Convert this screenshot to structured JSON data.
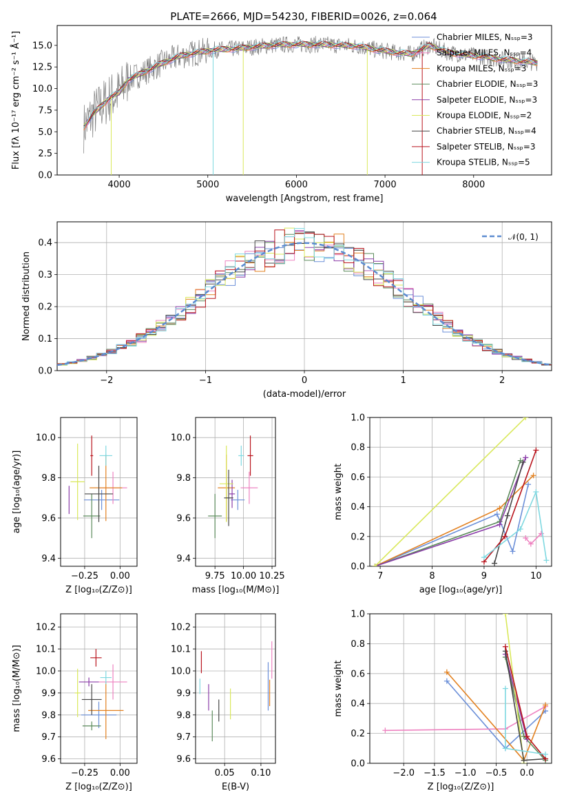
{
  "colors": [
    "#6b8fd8",
    "#ee82c0",
    "#e2801f",
    "#5a8a5a",
    "#8a3ba8",
    "#d9e85a",
    "#454545",
    "#b8121b",
    "#7ed8e0"
  ],
  "chart_data": [
    {
      "id": "spectrum",
      "type": "line",
      "title": "PLATE=2666, MJD=54230, FIBERID=0026, z=0.064",
      "xlabel": "wavelength [Angstrom, rest frame]",
      "ylabel": "Flux [fλ 10⁻¹⁷ erg cm⁻² s⁻¹ Å⁻¹]",
      "xlim": [
        3300,
        8880
      ],
      "ylim": [
        0,
        17.3
      ],
      "xticks": [
        4000,
        5000,
        6000,
        7000,
        8000
      ],
      "yticks": [
        0.0,
        2.5,
        5.0,
        7.5,
        10.0,
        12.5,
        15.0
      ],
      "legend_position": "right",
      "legend": [
        "Chabrier MILES, N_SSP=3",
        "Salpeter MILES, N_SSP=4",
        "Kroupa MILES, N_SSP=3",
        "Chabrier ELODIE, N_SSP=3",
        "Salpeter ELODIE, N_SSP=3",
        "Kroupa ELODIE, N_SSP=2",
        "Chabrier STELIB, N_SSP=4",
        "Salpeter STELIB, N_SSP=3",
        "Kroupa STELIB, N_SSP=5"
      ],
      "continuum": [
        [
          3600,
          5.5
        ],
        [
          3700,
          7.0
        ],
        [
          3800,
          8.0
        ],
        [
          3900,
          9.0
        ],
        [
          4000,
          9.5
        ],
        [
          4100,
          11.0
        ],
        [
          4300,
          12.0
        ],
        [
          4500,
          13.0
        ],
        [
          4700,
          13.8
        ],
        [
          4900,
          14.2
        ],
        [
          5100,
          14.5
        ],
        [
          5300,
          14.6
        ],
        [
          5500,
          14.8
        ],
        [
          5700,
          15.0
        ],
        [
          5900,
          15.1
        ],
        [
          6100,
          15.1
        ],
        [
          6300,
          15.1
        ],
        [
          6500,
          15.0
        ],
        [
          6700,
          14.9
        ],
        [
          6900,
          14.5
        ],
        [
          7100,
          14.2
        ],
        [
          7300,
          14.0
        ],
        [
          7500,
          15.0
        ],
        [
          7700,
          14.2
        ],
        [
          7900,
          13.9
        ],
        [
          8100,
          13.7
        ],
        [
          8300,
          13.4
        ],
        [
          8500,
          13.2
        ],
        [
          8700,
          13.0
        ]
      ]
    },
    {
      "id": "residuals",
      "type": "line",
      "xlabel": "(data-model)/error",
      "ylabel": "Normed distribution",
      "xlim": [
        -2.5,
        2.5
      ],
      "ylim": [
        0,
        0.465
      ],
      "xticks": [
        -2,
        -1,
        0,
        1,
        2
      ],
      "yticks": [
        0.0,
        0.1,
        0.2,
        0.3,
        0.4
      ],
      "legend": [
        "𝒩(0, 1)"
      ],
      "legend_position": "top-right"
    },
    {
      "id": "age-vs-Z",
      "type": "scatter",
      "xlabel": "Z [log₁₀(Z/Z⊙)]",
      "ylabel": "age  [log₁₀(age/yr)]",
      "xlim": [
        -0.42,
        0.12
      ],
      "ylim": [
        9.36,
        10.1
      ],
      "xticks": [
        -0.25,
        0.0
      ],
      "yticks": [
        9.4,
        9.6,
        9.8,
        10.0
      ],
      "points": [
        {
          "x": -0.13,
          "y": 9.69,
          "ex": 0.25,
          "ey": 0.1
        },
        {
          "x": -0.05,
          "y": 9.75,
          "ex": 0.2,
          "ey": 0.16
        },
        {
          "x": -0.1,
          "y": 9.75,
          "ex": 0.23,
          "ey": 0.33
        },
        {
          "x": -0.2,
          "y": 9.61,
          "ex": 0.12,
          "ey": 0.22
        },
        {
          "x": -0.36,
          "y": 9.69,
          "ex": 0.0,
          "ey": 0.14
        },
        {
          "x": -0.3,
          "y": 9.78,
          "ex": 0.1,
          "ey": 0.38
        },
        {
          "x": -0.15,
          "y": 9.72,
          "ex": 0.2,
          "ey": 0.28
        },
        {
          "x": -0.2,
          "y": 9.91,
          "ex": 0.02,
          "ey": 0.2
        },
        {
          "x": -0.1,
          "y": 9.91,
          "ex": 0.09,
          "ey": 0.1
        }
      ]
    },
    {
      "id": "age-vs-mass",
      "type": "scatter",
      "xlabel": "mass [log₁₀(M/M⊙)]",
      "xlim": [
        9.58,
        10.28
      ],
      "ylim": [
        9.36,
        10.1
      ],
      "xticks": [
        9.75,
        10.0,
        10.25
      ],
      "yticks": [
        9.4,
        9.6,
        9.8,
        10.0
      ],
      "points": [
        {
          "x": 9.95,
          "y": 9.69,
          "ex": 0.12,
          "ey": 0.1
        },
        {
          "x": 10.05,
          "y": 9.75,
          "ex": 0.15,
          "ey": 0.16
        },
        {
          "x": 9.85,
          "y": 9.75,
          "ex": 0.15,
          "ey": 0.33
        },
        {
          "x": 9.75,
          "y": 9.61,
          "ex": 0.12,
          "ey": 0.22
        },
        {
          "x": 9.9,
          "y": 9.72,
          "ex": 0.05,
          "ey": 0.14
        },
        {
          "x": 9.85,
          "y": 9.77,
          "ex": 0.12,
          "ey": 0.38
        },
        {
          "x": 9.87,
          "y": 9.7,
          "ex": 0.08,
          "ey": 0.28
        },
        {
          "x": 10.06,
          "y": 9.91,
          "ex": 0.05,
          "ey": 0.2
        },
        {
          "x": 9.98,
          "y": 9.91,
          "ex": 0.05,
          "ey": 0.1
        }
      ]
    },
    {
      "id": "weight-vs-age",
      "type": "line",
      "xlabel": "age  [log₁₀(age/yr)]",
      "ylabel": "mass weight",
      "xlim": [
        6.8,
        10.3
      ],
      "ylim": [
        0,
        1
      ],
      "xticks": [
        7,
        8,
        9,
        10
      ],
      "yticks": [
        0.0,
        0.2,
        0.4,
        0.6,
        0.8,
        1.0
      ],
      "series": [
        {
          "x": [
            6.9,
            9.25,
            9.55,
            9.85
          ],
          "y": [
            0.0,
            0.35,
            0.1,
            0.55
          ]
        },
        {
          "x": [
            9.8,
            9.9,
            10.1
          ],
          "y": [
            0.19,
            0.15,
            0.22
          ]
        },
        {
          "x": [
            6.9,
            9.3,
            9.95
          ],
          "y": [
            0.0,
            0.39,
            0.61
          ]
        },
        {
          "x": [
            6.9,
            9.3,
            9.7
          ],
          "y": [
            0.0,
            0.3,
            0.71
          ]
        },
        {
          "x": [
            6.9,
            9.3,
            9.8
          ],
          "y": [
            0.0,
            0.28,
            0.73
          ]
        },
        {
          "x": [
            6.9,
            9.8
          ],
          "y": [
            0.0,
            1.0
          ]
        },
        {
          "x": [
            9.2,
            9.45,
            9.75
          ],
          "y": [
            0.02,
            0.34,
            0.7
          ]
        },
        {
          "x": [
            9.0,
            9.4,
            10.0
          ],
          "y": [
            0.03,
            0.2,
            0.78
          ]
        },
        {
          "x": [
            9.0,
            9.7,
            10.0,
            10.2
          ],
          "y": [
            0.06,
            0.25,
            0.5,
            0.04
          ]
        }
      ]
    },
    {
      "id": "weight-vs-Z",
      "type": "line",
      "xlabel": "Z [log₁₀(Z/Z⊙)]",
      "ylabel": "mass weight",
      "xlim": [
        -2.55,
        0.4
      ],
      "ylim": [
        0,
        1
      ],
      "xticks": [
        -2.0,
        -1.5,
        -1.0,
        -0.5,
        0.0
      ],
      "yticks": [
        0.0,
        0.2,
        0.4,
        0.6,
        0.8,
        1.0
      ],
      "series": [
        {
          "x": [
            -1.3,
            -0.35,
            0.3
          ],
          "y": [
            0.55,
            0.1,
            0.35
          ]
        },
        {
          "x": [
            -2.3,
            -0.35,
            0.3
          ],
          "y": [
            0.22,
            0.23,
            0.38
          ]
        },
        {
          "x": [
            -1.3,
            -0.05,
            0.3
          ],
          "y": [
            0.61,
            0.02,
            0.39
          ]
        },
        {
          "x": [
            -0.35,
            -0.05,
            0.3
          ],
          "y": [
            0.71,
            0.18,
            0.02
          ]
        },
        {
          "x": [
            -0.35,
            0.0
          ],
          "y": [
            0.73,
            0.16
          ]
        },
        {
          "x": [
            -0.35,
            -0.05
          ],
          "y": [
            1.0,
            0.0
          ]
        },
        {
          "x": [
            -0.35,
            -0.05,
            0.3
          ],
          "y": [
            0.75,
            0.02,
            0.03
          ]
        },
        {
          "x": [
            -0.35,
            0.0,
            0.3
          ],
          "y": [
            0.78,
            0.18,
            0.03
          ]
        },
        {
          "x": [
            -0.35,
            -0.35,
            0.3
          ],
          "y": [
            0.5,
            0.1,
            0.06
          ]
        }
      ]
    },
    {
      "id": "mass-vs-Z",
      "type": "scatter",
      "xlabel": "Z [log₁₀(Z/Z⊙)]",
      "ylabel": "mass [log₁₀(M/M⊙)]",
      "xlim": [
        -0.42,
        0.12
      ],
      "ylim": [
        9.58,
        10.26
      ],
      "xticks": [
        -0.25,
        0.0
      ],
      "yticks": [
        9.6,
        9.7,
        9.8,
        9.9,
        10.0,
        10.1,
        10.2
      ],
      "points": [
        {
          "x": -0.15,
          "y": 9.8,
          "ex": 0.25,
          "ey": 0.12
        },
        {
          "x": -0.05,
          "y": 9.95,
          "ex": 0.2,
          "ey": 0.16
        },
        {
          "x": -0.1,
          "y": 9.82,
          "ex": 0.25,
          "ey": 0.26
        },
        {
          "x": -0.2,
          "y": 9.75,
          "ex": 0.13,
          "ey": 0.04
        },
        {
          "x": -0.22,
          "y": 9.95,
          "ex": 0.14,
          "ey": 0.04
        },
        {
          "x": -0.3,
          "y": 9.9,
          "ex": 0.04,
          "ey": 0.22
        },
        {
          "x": -0.2,
          "y": 9.87,
          "ex": 0.14,
          "ey": 0.14
        },
        {
          "x": -0.17,
          "y": 10.06,
          "ex": 0.08,
          "ey": 0.08
        },
        {
          "x": -0.1,
          "y": 9.97,
          "ex": 0.08,
          "ey": 0.06
        }
      ]
    },
    {
      "id": "mass-vs-EBV",
      "type": "scatter",
      "xlabel": "E(B-V)",
      "xlim": [
        0.01,
        0.12
      ],
      "ylim": [
        9.58,
        10.26
      ],
      "xticks": [
        0.05,
        0.1
      ],
      "yticks": [
        9.6,
        9.7,
        9.8,
        9.9,
        10.0,
        10.1,
        10.2
      ],
      "points": [
        {
          "x": 0.11,
          "y": 9.93,
          "ey": 0.22
        },
        {
          "x": 0.115,
          "y": 10.05,
          "ey": 0.17
        },
        {
          "x": 0.112,
          "y": 9.9,
          "ey": 0.12
        },
        {
          "x": 0.033,
          "y": 9.75,
          "ey": 0.14
        },
        {
          "x": 0.028,
          "y": 9.88,
          "ey": 0.12
        },
        {
          "x": 0.058,
          "y": 9.85,
          "ey": 0.14
        },
        {
          "x": 0.042,
          "y": 9.82,
          "ey": 0.1
        },
        {
          "x": 0.018,
          "y": 10.04,
          "ey": 0.1
        },
        {
          "x": 0.016,
          "y": 9.93,
          "ey": 0.07
        }
      ]
    }
  ]
}
